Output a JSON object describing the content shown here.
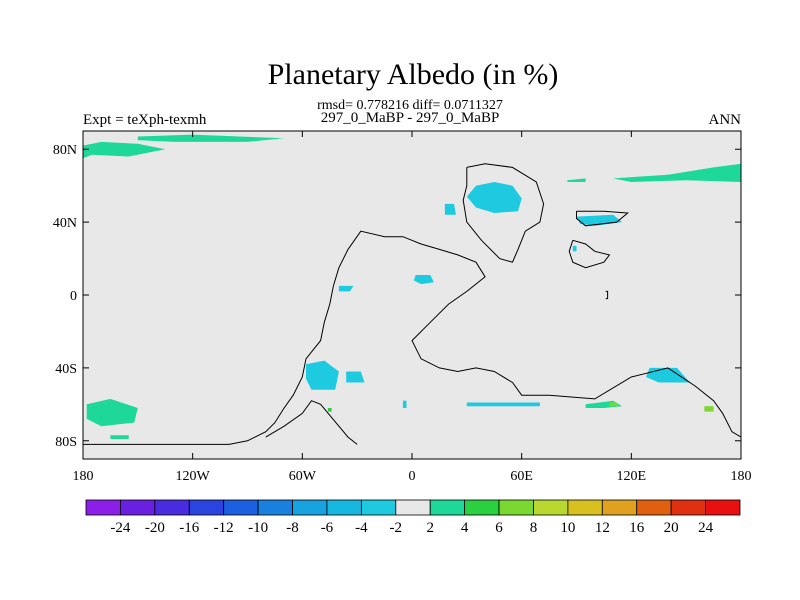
{
  "chart_data": {
    "type": "heatmap",
    "title": "Planetary Albedo (in %)",
    "stats_text": "rmsd= 0.778216 diff= 0.0711327",
    "subtitle": "297_0_MaBP - 297_0_MaBP",
    "left_label": "Expt = teXph-texmh",
    "right_label": "ANN",
    "xlim": [
      -180,
      180
    ],
    "ylim": [
      -90,
      90
    ],
    "x_ticks": [
      {
        "value": -180,
        "label": "180"
      },
      {
        "value": -120,
        "label": "120W"
      },
      {
        "value": -60,
        "label": "60W"
      },
      {
        "value": 0,
        "label": "0"
      },
      {
        "value": 60,
        "label": "60E"
      },
      {
        "value": 120,
        "label": "120E"
      },
      {
        "value": 180,
        "label": "180"
      }
    ],
    "y_ticks": [
      {
        "value": 80,
        "label": "80N"
      },
      {
        "value": 40,
        "label": "40N"
      },
      {
        "value": 0,
        "label": "0"
      },
      {
        "value": -40,
        "label": "40S"
      },
      {
        "value": -80,
        "label": "80S"
      }
    ],
    "colorbar": {
      "levels": [
        "-24",
        "-20",
        "-16",
        "-12",
        "-10",
        "-8",
        "-6",
        "-4",
        "-2",
        "2",
        "4",
        "6",
        "8",
        "10",
        "12",
        "16",
        "20",
        "24"
      ],
      "colors": [
        "#8b1fe8",
        "#6a20e0",
        "#4a2ce0",
        "#2a44e0",
        "#1c5fe0",
        "#1980e0",
        "#18a2e0",
        "#16b8e0",
        "#1ecae0",
        "#e8e8e8",
        "#1ed89a",
        "#2ad040",
        "#7ad830",
        "#b8d830",
        "#d8c020",
        "#e0a020",
        "#e06010",
        "#e03010",
        "#e81010"
      ]
    },
    "background_color": "#e8e8e8",
    "anomalies": [
      {
        "region": "arctic-west",
        "color": "#1ed89a",
        "points": [
          [
            -180,
            82
          ],
          [
            -170,
            84
          ],
          [
            -150,
            83
          ],
          [
            -135,
            80
          ],
          [
            -155,
            76
          ],
          [
            -175,
            77
          ],
          [
            -180,
            75
          ]
        ]
      },
      {
        "region": "arctic-central",
        "color": "#1ed89a",
        "points": [
          [
            -150,
            87
          ],
          [
            -120,
            88
          ],
          [
            -70,
            86
          ],
          [
            -90,
            84
          ],
          [
            -130,
            84
          ],
          [
            -150,
            85
          ]
        ]
      },
      {
        "region": "arctic-east",
        "color": "#1ed89a",
        "points": [
          [
            110,
            64
          ],
          [
            140,
            66
          ],
          [
            165,
            70
          ],
          [
            180,
            72
          ],
          [
            180,
            62
          ],
          [
            150,
            63
          ],
          [
            120,
            62
          ]
        ]
      },
      {
        "region": "arctic-east-strip",
        "color": "#1ed89a",
        "points": [
          [
            85,
            63
          ],
          [
            95,
            64
          ],
          [
            95,
            62
          ],
          [
            85,
            62
          ]
        ]
      },
      {
        "region": "north-central",
        "color": "#1ecae0",
        "points": [
          [
            35,
            60
          ],
          [
            45,
            62
          ],
          [
            55,
            60
          ],
          [
            60,
            53
          ],
          [
            58,
            46
          ],
          [
            45,
            45
          ],
          [
            35,
            48
          ],
          [
            30,
            54
          ]
        ]
      },
      {
        "region": "north-small",
        "color": "#1ecae0",
        "points": [
          [
            18,
            50
          ],
          [
            23,
            50
          ],
          [
            24,
            44
          ],
          [
            18,
            44
          ]
        ]
      },
      {
        "region": "east-40n",
        "color": "#1ecae0",
        "points": [
          [
            90,
            43
          ],
          [
            110,
            44
          ],
          [
            115,
            40
          ],
          [
            100,
            38
          ],
          [
            92,
            39
          ]
        ]
      },
      {
        "region": "east-dot",
        "color": "#1ecae0",
        "points": [
          [
            88,
            27
          ],
          [
            90,
            27
          ],
          [
            90,
            24
          ],
          [
            88,
            24
          ]
        ]
      },
      {
        "region": "tropic-1",
        "color": "#1ecae0",
        "points": [
          [
            2,
            11
          ],
          [
            10,
            11
          ],
          [
            12,
            7
          ],
          [
            5,
            6
          ],
          [
            1,
            8
          ]
        ]
      },
      {
        "region": "tropic-2",
        "color": "#1ecae0",
        "points": [
          [
            -40,
            5
          ],
          [
            -32,
            5
          ],
          [
            -34,
            2
          ],
          [
            -40,
            2
          ]
        ]
      },
      {
        "region": "southern-1",
        "color": "#1ecae0",
        "points": [
          [
            -58,
            -38
          ],
          [
            -48,
            -36
          ],
          [
            -40,
            -42
          ],
          [
            -42,
            -52
          ],
          [
            -55,
            -52
          ],
          [
            -58,
            -46
          ]
        ]
      },
      {
        "region": "southern-2",
        "color": "#1ecae0",
        "points": [
          [
            -36,
            -42
          ],
          [
            -28,
            -42
          ],
          [
            -26,
            -48
          ],
          [
            -36,
            -48
          ]
        ]
      },
      {
        "region": "southern-3",
        "color": "#1ecae0",
        "points": [
          [
            130,
            -40
          ],
          [
            145,
            -40
          ],
          [
            152,
            -48
          ],
          [
            135,
            -48
          ],
          [
            128,
            -45
          ]
        ]
      },
      {
        "region": "south-strip",
        "color": "#1ecae0",
        "points": [
          [
            30,
            -59
          ],
          [
            70,
            -59
          ],
          [
            70,
            -61
          ],
          [
            30,
            -61
          ]
        ]
      },
      {
        "region": "south-dot",
        "color": "#1ecae0",
        "points": [
          [
            -5,
            -58
          ],
          [
            -3,
            -58
          ],
          [
            -3,
            -62
          ],
          [
            -5,
            -62
          ]
        ]
      },
      {
        "region": "antarctic-west",
        "color": "#1ed89a",
        "points": [
          [
            -178,
            -60
          ],
          [
            -165,
            -57
          ],
          [
            -150,
            -62
          ],
          [
            -152,
            -70
          ],
          [
            -170,
            -72
          ],
          [
            -178,
            -68
          ]
        ]
      },
      {
        "region": "antarctic-strip",
        "color": "#1ed89a",
        "points": [
          [
            -165,
            -77
          ],
          [
            -155,
            -77
          ],
          [
            -155,
            -79
          ],
          [
            -165,
            -79
          ]
        ]
      },
      {
        "region": "south-green",
        "color": "#1ed89a",
        "points": [
          [
            95,
            -60
          ],
          [
            110,
            -58
          ],
          [
            115,
            -61
          ],
          [
            105,
            -62
          ],
          [
            95,
            -62
          ]
        ]
      },
      {
        "region": "south-green-core",
        "color": "#7ad830",
        "points": [
          [
            108,
            -59
          ],
          [
            112,
            -59
          ],
          [
            113,
            -61
          ],
          [
            108,
            -61
          ]
        ]
      },
      {
        "region": "south-green-east",
        "color": "#7ad830",
        "points": [
          [
            160,
            -61
          ],
          [
            165,
            -61
          ],
          [
            165,
            -64
          ],
          [
            160,
            -64
          ]
        ]
      },
      {
        "region": "south-green-dot",
        "color": "#2ad040",
        "points": [
          [
            -46,
            -62
          ],
          [
            -44,
            -62
          ],
          [
            -44,
            -64
          ],
          [
            -46,
            -64
          ]
        ]
      }
    ],
    "coastlines": [
      {
        "name": "pangea-west",
        "points": [
          [
            -180,
            -82
          ],
          [
            -100,
            -82
          ],
          [
            -90,
            -80
          ],
          [
            -80,
            -75
          ],
          [
            -75,
            -70
          ],
          [
            -70,
            -62
          ],
          [
            -65,
            -55
          ],
          [
            -60,
            -45
          ],
          [
            -58,
            -35
          ],
          [
            -50,
            -25
          ],
          [
            -48,
            -15
          ],
          [
            -45,
            -5
          ],
          [
            -43,
            5
          ],
          [
            -40,
            15
          ],
          [
            -35,
            25
          ],
          [
            -28,
            35
          ],
          [
            -15,
            32
          ],
          [
            -5,
            32
          ],
          [
            5,
            28
          ],
          [
            15,
            25
          ],
          [
            25,
            22
          ],
          [
            35,
            18
          ],
          [
            40,
            10
          ],
          [
            30,
            2
          ],
          [
            20,
            -5
          ],
          [
            10,
            -15
          ],
          [
            0,
            -25
          ],
          [
            5,
            -35
          ],
          [
            15,
            -40
          ],
          [
            25,
            -42
          ],
          [
            35,
            -40
          ],
          [
            45,
            -42
          ],
          [
            55,
            -48
          ],
          [
            60,
            -55
          ],
          [
            75,
            -55
          ],
          [
            100,
            -57
          ],
          [
            120,
            -45
          ],
          [
            140,
            -40
          ],
          [
            155,
            -50
          ],
          [
            165,
            -58
          ],
          [
            170,
            -65
          ],
          [
            175,
            -75
          ],
          [
            180,
            -78
          ]
        ]
      },
      {
        "name": "pangea-south-inner",
        "points": [
          [
            -80,
            -78
          ],
          [
            -70,
            -72
          ],
          [
            -60,
            -65
          ],
          [
            -55,
            -58
          ],
          [
            -50,
            -60
          ],
          [
            -45,
            -66
          ],
          [
            -40,
            -72
          ],
          [
            -35,
            -78
          ],
          [
            -30,
            -82
          ]
        ]
      },
      {
        "name": "tethys-north",
        "points": [
          [
            30,
            70
          ],
          [
            40,
            72
          ],
          [
            55,
            70
          ],
          [
            68,
            62
          ],
          [
            72,
            50
          ],
          [
            70,
            40
          ],
          [
            62,
            35
          ],
          [
            58,
            25
          ],
          [
            55,
            18
          ],
          [
            48,
            20
          ],
          [
            38,
            30
          ],
          [
            30,
            40
          ],
          [
            28,
            52
          ],
          [
            30,
            60
          ],
          [
            30,
            70
          ]
        ]
      },
      {
        "name": "east-block",
        "points": [
          [
            88,
            30
          ],
          [
            95,
            28
          ],
          [
            100,
            24
          ],
          [
            108,
            22
          ],
          [
            105,
            18
          ],
          [
            95,
            15
          ],
          [
            88,
            18
          ],
          [
            86,
            24
          ],
          [
            88,
            30
          ]
        ]
      },
      {
        "name": "east-tab",
        "points": [
          [
            90,
            46
          ],
          [
            105,
            46
          ],
          [
            118,
            45
          ],
          [
            112,
            40
          ],
          [
            95,
            38
          ],
          [
            90,
            42
          ],
          [
            90,
            46
          ]
        ]
      },
      {
        "name": "east-thin",
        "points": [
          [
            106,
            2
          ],
          [
            107,
            2
          ],
          [
            107,
            -2
          ],
          [
            106,
            -2
          ]
        ]
      }
    ]
  }
}
